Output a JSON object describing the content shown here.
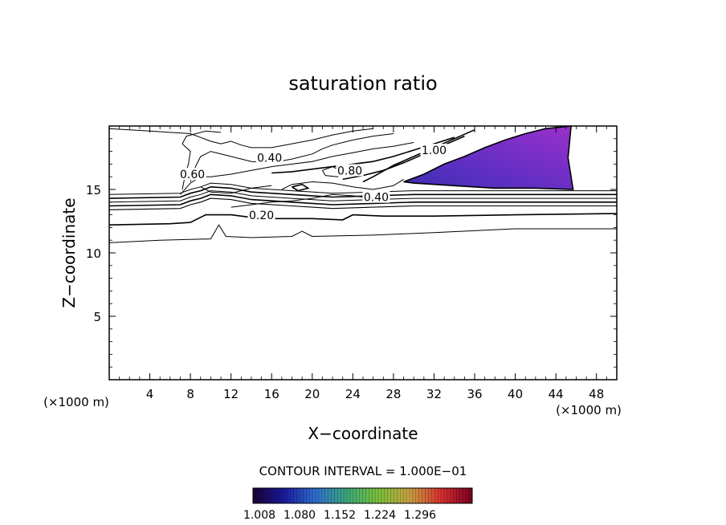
{
  "chart_data": {
    "type": "contour",
    "title": "saturation ratio",
    "xlabel": "X−coordinate",
    "ylabel": "Z−coordinate",
    "x_unit": "(×1000 m)",
    "y_unit": "(×1000 m)",
    "xlim": [
      0,
      50
    ],
    "ylim": [
      0,
      20
    ],
    "x_ticks": [
      4,
      8,
      12,
      16,
      20,
      24,
      28,
      32,
      36,
      40,
      44,
      48
    ],
    "y_ticks": [
      5,
      10,
      15
    ],
    "contour_interval_text": "CONTOUR INTERVAL = 1.000E−01",
    "contour_labels": [
      {
        "text": "0.40",
        "x": 15.8,
        "z": 17.3
      },
      {
        "text": "0.20",
        "x": 15.0,
        "z": 12.8
      },
      {
        "text": "0.40",
        "x": 26.3,
        "z": 14.2
      },
      {
        "text": "0.60",
        "x": 8.2,
        "z": 16.0
      },
      {
        "text": "0.80",
        "x": 23.7,
        "z": 16.3
      },
      {
        "text": "1.00",
        "x": 32.0,
        "z": 17.9
      }
    ],
    "colorbar": {
      "ticks": [
        "1.008",
        "1.080",
        "1.152",
        "1.224",
        "1.296"
      ],
      "colors": [
        "#1a0033",
        "#1a1aa0",
        "#2e6fd0",
        "#3aa87a",
        "#7ac23a",
        "#c8a040",
        "#d83030",
        "#7a0020"
      ]
    },
    "supersaturated_region": {
      "description_values": "saturation ratio ≈ 1.008–1.08",
      "colors": [
        "#3a2fb0",
        "#5a2fc0",
        "#7a2fc8",
        "#9a30c8"
      ]
    }
  }
}
